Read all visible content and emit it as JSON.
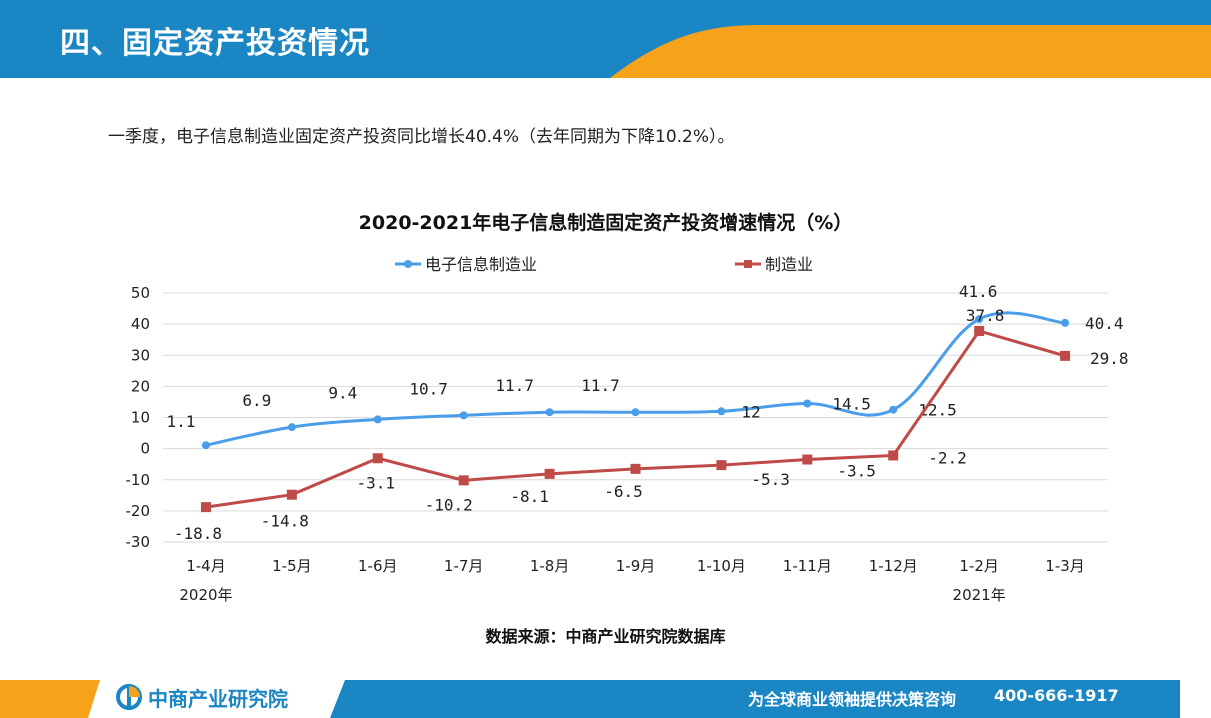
{
  "header": {
    "title": "四、固定资产投资情况",
    "bar_color": "#1b86c4",
    "accent_color": "#f7a21b"
  },
  "intro_text": "一季度，电子信息制造业固定资产投资同比增长40.4%（去年同期为下降10.2%）。",
  "chart_data": {
    "type": "line",
    "title": "2020-2021年电子信息制造固定资产投资增速情况（%）",
    "categories": [
      "1-4月",
      "1-5月",
      "1-6月",
      "1-7月",
      "1-8月",
      "1-9月",
      "1-10月",
      "1-11月",
      "1-12月",
      "1-2月",
      "1-3月"
    ],
    "year_labels": [
      {
        "category_index": 0,
        "label": "2020年"
      },
      {
        "category_index": 9,
        "label": "2021年"
      }
    ],
    "ylim": [
      -30,
      50
    ],
    "yticks": [
      50,
      40,
      30,
      20,
      10,
      0,
      -10,
      -20,
      -30
    ],
    "grid": true,
    "legend_position": "top",
    "series": [
      {
        "name": "电子信息制造业",
        "color": "#4a9de8",
        "marker": "circle",
        "smooth": true,
        "values": [
          1.1,
          6.9,
          9.4,
          10.7,
          11.7,
          11.7,
          12,
          14.5,
          12.5,
          41.6,
          40.4
        ],
        "labels": [
          "1.1",
          "6.9",
          "9.4",
          "10.7",
          "11.7",
          "11.7",
          "12",
          "14.5",
          "12.5",
          "41.6",
          "40.4"
        ]
      },
      {
        "name": "制造业",
        "color": "#be4b48",
        "marker": "square",
        "smooth": false,
        "values": [
          -18.8,
          -14.8,
          -3.1,
          -10.2,
          -8.1,
          -6.5,
          -5.3,
          -3.5,
          -2.2,
          37.8,
          29.8
        ],
        "labels": [
          "-18.8",
          "-14.8",
          "-3.1",
          "-10.2",
          "-8.1",
          "-6.5",
          "-5.3",
          "-3.5",
          "-2.2",
          "37.8",
          "29.8"
        ]
      }
    ]
  },
  "source_text": "数据来源：中商产业研究院数据库",
  "footer": {
    "logo_text": "中商产业研究院",
    "slogan": "为全球商业领袖提供决策咨询",
    "phone": "400-666-1917",
    "bar_color": "#1b86c4",
    "accent_color": "#f7a21b"
  }
}
